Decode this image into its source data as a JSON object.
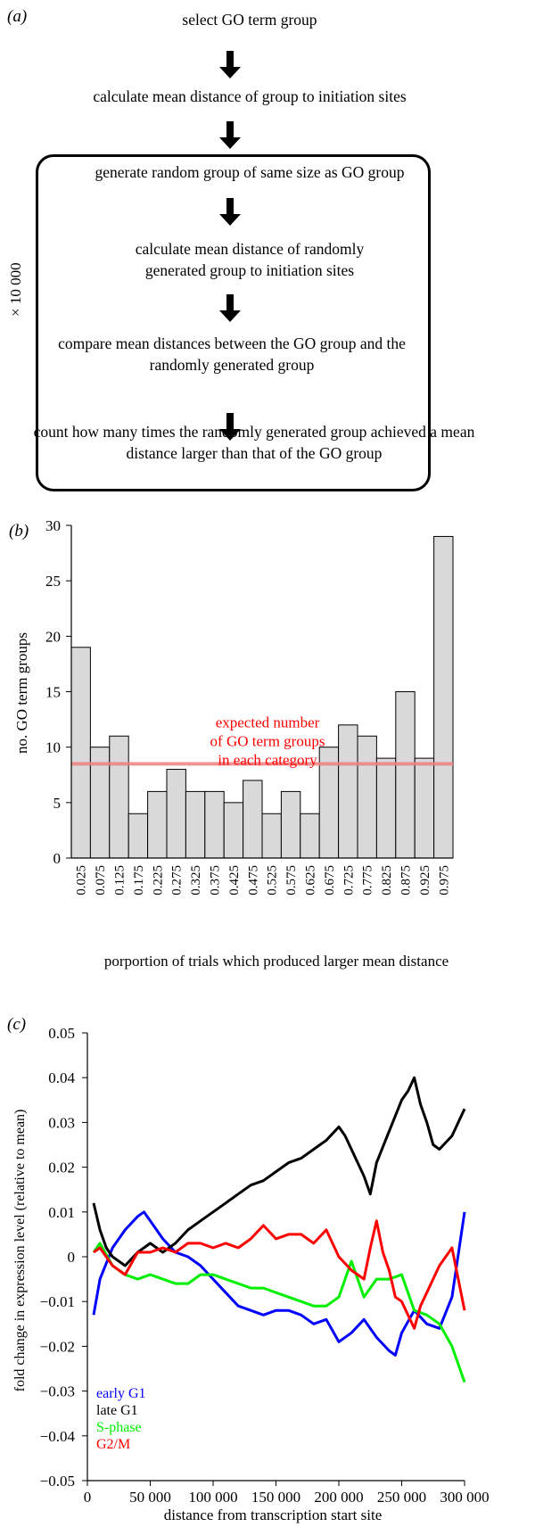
{
  "panel_a": {
    "label": "(a)",
    "steps": [
      "select GO term group",
      "calculate mean distance of group to initiation sites",
      "generate random group of same size as GO group",
      "calculate mean distance of randomly generated group to initiation sites",
      "compare mean distances between the GO group and the randomly generated group",
      "count how many times the randomly generated group achieved a mean distance larger than that of the GO group"
    ],
    "loop_label": "× 10 000"
  },
  "chart_data": [
    {
      "type": "bar",
      "panel_label": "(b)",
      "xlabel": "porportion of trials which produced larger mean distance",
      "ylabel": "no. GO term groups",
      "categories": [
        "0.025",
        "0.075",
        "0.125",
        "0.175",
        "0.225",
        "0.275",
        "0.325",
        "0.375",
        "0.425",
        "0.475",
        "0.525",
        "0.575",
        "0.625",
        "0.675",
        "0.725",
        "0.775",
        "0.825",
        "0.875",
        "0.925",
        "0.975"
      ],
      "values": [
        19,
        10,
        11,
        4,
        6,
        8,
        6,
        6,
        5,
        7,
        4,
        6,
        4,
        10,
        12,
        11,
        9,
        15,
        9,
        29
      ],
      "ylim": [
        0,
        30
      ],
      "yticks": [
        0,
        5,
        10,
        15,
        20,
        25,
        30
      ],
      "bar_color": "#d9d9d9",
      "reference_line": {
        "value": 8.5,
        "color": "#f08080",
        "label": [
          "expected number",
          "of GO term groups",
          "in each category"
        ],
        "label_color": "#ff0000"
      }
    },
    {
      "type": "line",
      "panel_label": "(c)",
      "xlabel": "distance from transcription start site",
      "ylabel": "fold change in expression level (relative to mean)",
      "xlim": [
        0,
        300000
      ],
      "ylim": [
        -0.05,
        0.05
      ],
      "xticks": [
        0,
        50000,
        100000,
        150000,
        200000,
        250000,
        300000
      ],
      "xtick_labels": [
        "0",
        "50 000",
        "100 000",
        "150 000",
        "200 000",
        "250 000",
        "300 000"
      ],
      "yticks": [
        -0.05,
        -0.04,
        -0.03,
        -0.02,
        -0.01,
        0,
        0.01,
        0.02,
        0.03,
        0.04,
        0.05
      ],
      "ytick_labels": [
        "−0.05",
        "−0.04",
        "−0.03",
        "−0.02",
        "−0.01",
        "0",
        "0.01",
        "0.02",
        "0.03",
        "0.04",
        "0.05"
      ],
      "legend_position": "bottom-left",
      "series": [
        {
          "name": "early G1",
          "color": "#0000ff",
          "x": [
            5000,
            10000,
            20000,
            30000,
            40000,
            45000,
            50000,
            60000,
            70000,
            80000,
            90000,
            100000,
            110000,
            120000,
            130000,
            140000,
            150000,
            160000,
            170000,
            180000,
            190000,
            200000,
            210000,
            220000,
            230000,
            240000,
            245000,
            250000,
            260000,
            270000,
            280000,
            290000,
            300000
          ],
          "y": [
            -0.013,
            -0.005,
            0.002,
            0.006,
            0.009,
            0.01,
            0.008,
            0.004,
            0.001,
            0.0,
            -0.002,
            -0.005,
            -0.008,
            -0.011,
            -0.012,
            -0.013,
            -0.012,
            -0.012,
            -0.013,
            -0.015,
            -0.014,
            -0.019,
            -0.017,
            -0.014,
            -0.018,
            -0.021,
            -0.022,
            -0.017,
            -0.012,
            -0.015,
            -0.016,
            -0.009,
            0.01
          ]
        },
        {
          "name": "late G1",
          "color": "#000000",
          "x": [
            5000,
            10000,
            15000,
            20000,
            30000,
            40000,
            50000,
            60000,
            70000,
            80000,
            90000,
            100000,
            110000,
            120000,
            130000,
            140000,
            150000,
            160000,
            170000,
            180000,
            190000,
            200000,
            205000,
            210000,
            220000,
            225000,
            230000,
            240000,
            250000,
            255000,
            260000,
            265000,
            270000,
            275000,
            280000,
            290000,
            300000
          ],
          "y": [
            0.012,
            0.006,
            0.002,
            0.0,
            -0.002,
            0.001,
            0.003,
            0.001,
            0.003,
            0.006,
            0.008,
            0.01,
            0.012,
            0.014,
            0.016,
            0.017,
            0.019,
            0.021,
            0.022,
            0.024,
            0.026,
            0.029,
            0.027,
            0.024,
            0.018,
            0.014,
            0.021,
            0.028,
            0.035,
            0.037,
            0.04,
            0.034,
            0.03,
            0.025,
            0.024,
            0.027,
            0.033
          ]
        },
        {
          "name": "S-phase",
          "color": "#00ee00",
          "x": [
            5000,
            10000,
            20000,
            30000,
            40000,
            50000,
            60000,
            70000,
            80000,
            90000,
            100000,
            110000,
            120000,
            130000,
            140000,
            150000,
            160000,
            170000,
            180000,
            190000,
            200000,
            210000,
            220000,
            230000,
            240000,
            250000,
            260000,
            270000,
            280000,
            290000,
            300000
          ],
          "y": [
            0.001,
            0.003,
            -0.002,
            -0.004,
            -0.005,
            -0.004,
            -0.005,
            -0.006,
            -0.006,
            -0.004,
            -0.004,
            -0.005,
            -0.006,
            -0.007,
            -0.007,
            -0.008,
            -0.009,
            -0.01,
            -0.011,
            -0.011,
            -0.009,
            -0.001,
            -0.009,
            -0.005,
            -0.005,
            -0.004,
            -0.012,
            -0.013,
            -0.015,
            -0.02,
            -0.028
          ]
        },
        {
          "name": "G2/M",
          "color": "#ff0000",
          "x": [
            5000,
            10000,
            20000,
            30000,
            40000,
            50000,
            60000,
            70000,
            80000,
            90000,
            100000,
            110000,
            120000,
            130000,
            140000,
            150000,
            160000,
            170000,
            180000,
            190000,
            200000,
            210000,
            220000,
            225000,
            230000,
            235000,
            240000,
            245000,
            250000,
            260000,
            265000,
            270000,
            280000,
            290000,
            300000
          ],
          "y": [
            0.001,
            0.002,
            -0.002,
            -0.004,
            0.001,
            0.001,
            0.002,
            0.001,
            0.003,
            0.003,
            0.002,
            0.003,
            0.002,
            0.004,
            0.007,
            0.004,
            0.005,
            0.005,
            0.003,
            0.006,
            0.0,
            -0.003,
            -0.005,
            0.002,
            0.008,
            0.001,
            -0.003,
            -0.009,
            -0.01,
            -0.016,
            -0.011,
            -0.008,
            -0.002,
            0.002,
            -0.012
          ]
        }
      ]
    }
  ]
}
